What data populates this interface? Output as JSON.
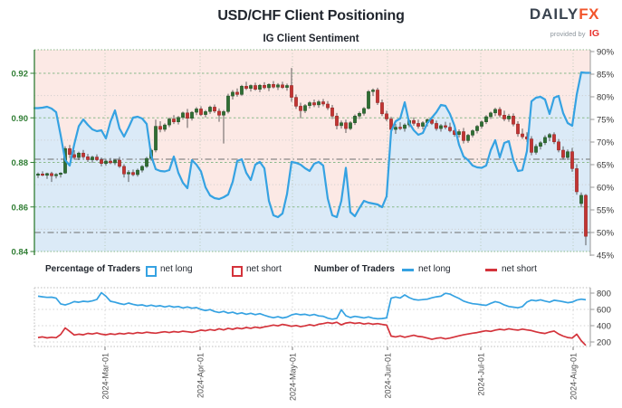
{
  "header": {
    "title": "USD/CHF Client Positioning",
    "subtitle": "IG Client Sentiment",
    "logo": {
      "daily": "DAILY",
      "fx": "FX",
      "provided_by": "provided by",
      "ig": "IG"
    }
  },
  "legend": {
    "percentage_label": "Percentage of Traders",
    "number_label": "Number of Traders",
    "net_long": "net long",
    "net_short": "net short"
  },
  "colors": {
    "candle_up": "#2f6e33",
    "candle_up_stroke": "#1e4f22",
    "candle_down": "#c23432",
    "candle_down_stroke": "#8f2321",
    "sentiment_line": "#35a2e2",
    "net_long_count_line": "#35a2e2",
    "net_short_count_line": "#d4333b",
    "fill_above_line": "#fce9e5",
    "fill_below_line": "#dbeaf7",
    "price_axis": "#2f7d33"
  },
  "chart_data": [
    {
      "type": "candlestick+line",
      "title": "IG Client Sentiment",
      "ylabel_left": "price",
      "ylabel_right": "percent net long",
      "price_ticks": [
        0.92,
        0.9,
        0.88,
        0.86,
        0.84
      ],
      "price_minor_lines": [
        0.91,
        0.89,
        0.87,
        0.85
      ],
      "pct_ticks": [
        90,
        85,
        80,
        75,
        70,
        65,
        60,
        55,
        50,
        45
      ],
      "pct_range": [
        45,
        90
      ],
      "price_range": [
        0.84,
        0.925
      ],
      "reference_lines_pct": [
        66.2,
        50
      ],
      "x_tick_labels": [
        "2024-Mar-01",
        "2024-Apr-01",
        "2024-May-01",
        "2024-Jun-01",
        "2024-Jul-01",
        "2024-Aug-01"
      ],
      "candles_ohlc": [
        [
          0.8742,
          0.8755,
          0.873,
          0.8748
        ],
        [
          0.8748,
          0.876,
          0.8738,
          0.8742
        ],
        [
          0.8742,
          0.8754,
          0.8726,
          0.875
        ],
        [
          0.875,
          0.8758,
          0.8712,
          0.874
        ],
        [
          0.874,
          0.8752,
          0.8728,
          0.8746
        ],
        [
          0.8746,
          0.8756,
          0.8732,
          0.8752
        ],
        [
          0.8752,
          0.8872,
          0.8748,
          0.8862
        ],
        [
          0.8862,
          0.8878,
          0.882,
          0.8835
        ],
        [
          0.8835,
          0.8855,
          0.8815,
          0.8822
        ],
        [
          0.8822,
          0.8848,
          0.881,
          0.8842
        ],
        [
          0.8842,
          0.8856,
          0.8818,
          0.8825
        ],
        [
          0.8825,
          0.8838,
          0.8802,
          0.8812
        ],
        [
          0.8812,
          0.883,
          0.8798,
          0.8824
        ],
        [
          0.8824,
          0.8836,
          0.8806,
          0.8812
        ],
        [
          0.8812,
          0.8822,
          0.8782,
          0.8795
        ],
        [
          0.8795,
          0.8812,
          0.8785,
          0.8806
        ],
        [
          0.8806,
          0.882,
          0.8792,
          0.8798
        ],
        [
          0.8798,
          0.8815,
          0.8788,
          0.881
        ],
        [
          0.881,
          0.8825,
          0.8775,
          0.8782
        ],
        [
          0.8782,
          0.8792,
          0.8732,
          0.8748
        ],
        [
          0.8748,
          0.8765,
          0.8712,
          0.8755
        ],
        [
          0.8755,
          0.8768,
          0.8738,
          0.8745
        ],
        [
          0.8745,
          0.8772,
          0.8736,
          0.8765
        ],
        [
          0.8765,
          0.8788,
          0.8755,
          0.8782
        ],
        [
          0.8782,
          0.8825,
          0.8775,
          0.8818
        ],
        [
          0.8818,
          0.8862,
          0.8808,
          0.8855
        ],
        [
          0.8855,
          0.8992,
          0.8845,
          0.8962
        ],
        [
          0.8962,
          0.8985,
          0.8935,
          0.8948
        ],
        [
          0.8948,
          0.8975,
          0.8938,
          0.8968
        ],
        [
          0.8968,
          0.9002,
          0.8958,
          0.8995
        ],
        [
          0.8995,
          0.9012,
          0.8972,
          0.8982
        ],
        [
          0.8982,
          0.9008,
          0.897,
          0.9002
        ],
        [
          0.9002,
          0.9028,
          0.8992,
          0.9022
        ],
        [
          0.9022,
          0.904,
          0.8955,
          0.8998
        ],
        [
          0.8998,
          0.903,
          0.8988,
          0.9025
        ],
        [
          0.9025,
          0.9048,
          0.9012,
          0.904
        ],
        [
          0.904,
          0.9052,
          0.9008,
          0.9015
        ],
        [
          0.9015,
          0.9035,
          0.9002,
          0.9028
        ],
        [
          0.9028,
          0.9055,
          0.9018,
          0.9048
        ],
        [
          0.9048,
          0.906,
          0.9022,
          0.903
        ],
        [
          0.903,
          0.9042,
          0.8982,
          0.9012
        ],
        [
          0.9012,
          0.9035,
          0.8885,
          0.9028
        ],
        [
          0.9028,
          0.9108,
          0.902,
          0.9098
        ],
        [
          0.9098,
          0.9125,
          0.9082,
          0.9115
        ],
        [
          0.9115,
          0.9132,
          0.9095,
          0.9105
        ],
        [
          0.9105,
          0.9148,
          0.9098,
          0.9142
        ],
        [
          0.9142,
          0.9162,
          0.9125,
          0.9132
        ],
        [
          0.9132,
          0.915,
          0.9118,
          0.9145
        ],
        [
          0.9145,
          0.9158,
          0.9122,
          0.9128
        ],
        [
          0.9128,
          0.9152,
          0.9115,
          0.9146
        ],
        [
          0.9146,
          0.916,
          0.9128,
          0.9135
        ],
        [
          0.9135,
          0.9155,
          0.912,
          0.915
        ],
        [
          0.915,
          0.9165,
          0.9132,
          0.9138
        ],
        [
          0.9138,
          0.9156,
          0.9125,
          0.9148
        ],
        [
          0.9148,
          0.9162,
          0.913,
          0.9136
        ],
        [
          0.9136,
          0.9154,
          0.9122,
          0.9145
        ],
        [
          0.9145,
          0.9224,
          0.9072,
          0.9092
        ],
        [
          0.9092,
          0.9105,
          0.904,
          0.9052
        ],
        [
          0.9052,
          0.9068,
          0.8998,
          0.9032
        ],
        [
          0.9032,
          0.9062,
          0.9022,
          0.9055
        ],
        [
          0.9055,
          0.9075,
          0.9042,
          0.9068
        ],
        [
          0.9068,
          0.9082,
          0.9048,
          0.9058
        ],
        [
          0.9058,
          0.908,
          0.9045,
          0.9072
        ],
        [
          0.9072,
          0.9085,
          0.9052,
          0.9062
        ],
        [
          0.9062,
          0.9075,
          0.9035,
          0.9045
        ],
        [
          0.9045,
          0.9058,
          0.8995,
          0.9008
        ],
        [
          0.9008,
          0.9022,
          0.8948,
          0.8965
        ],
        [
          0.8965,
          0.8988,
          0.8952,
          0.8978
        ],
        [
          0.8978,
          0.8992,
          0.8932,
          0.8952
        ],
        [
          0.8952,
          0.8985,
          0.8945,
          0.8978
        ],
        [
          0.8978,
          0.9015,
          0.8968,
          0.9008
        ],
        [
          0.9008,
          0.9028,
          0.8995,
          0.902
        ],
        [
          0.902,
          0.9048,
          0.901,
          0.9042
        ],
        [
          0.9042,
          0.9125,
          0.9038,
          0.9118
        ],
        [
          0.9118,
          0.9132,
          0.9098,
          0.9125
        ],
        [
          0.9125,
          0.9135,
          0.9058,
          0.9068
        ],
        [
          0.9068,
          0.9082,
          0.9008,
          0.9018
        ],
        [
          0.9018,
          0.9032,
          0.8985,
          0.8995
        ],
        [
          0.8995,
          0.9005,
          0.8938,
          0.8948
        ],
        [
          0.8948,
          0.8972,
          0.8928,
          0.8958
        ],
        [
          0.8958,
          0.898,
          0.8945,
          0.8952
        ],
        [
          0.8952,
          0.8975,
          0.8938,
          0.8968
        ],
        [
          0.8968,
          0.8995,
          0.8958,
          0.8988
        ],
        [
          0.8988,
          0.9002,
          0.8965,
          0.8975
        ],
        [
          0.8975,
          0.8992,
          0.8952,
          0.8962
        ],
        [
          0.8962,
          0.8985,
          0.8948,
          0.8978
        ],
        [
          0.8978,
          0.8998,
          0.8962,
          0.8992
        ],
        [
          0.8992,
          0.9005,
          0.8968,
          0.8975
        ],
        [
          0.8975,
          0.8988,
          0.8942,
          0.8952
        ],
        [
          0.8952,
          0.8972,
          0.8938,
          0.8965
        ],
        [
          0.8965,
          0.8982,
          0.8948,
          0.8958
        ],
        [
          0.8958,
          0.8978,
          0.8935,
          0.8942
        ],
        [
          0.8942,
          0.8962,
          0.8915,
          0.8925
        ],
        [
          0.8925,
          0.8948,
          0.8912,
          0.8938
        ],
        [
          0.8938,
          0.8955,
          0.8885,
          0.8898
        ],
        [
          0.8898,
          0.8928,
          0.8888,
          0.8922
        ],
        [
          0.8922,
          0.8948,
          0.8912,
          0.8942
        ],
        [
          0.8942,
          0.8968,
          0.893,
          0.8962
        ],
        [
          0.8962,
          0.8988,
          0.8952,
          0.8982
        ],
        [
          0.8982,
          0.9012,
          0.8972,
          0.9005
        ],
        [
          0.9005,
          0.9028,
          0.8995,
          0.9022
        ],
        [
          0.9022,
          0.9045,
          0.9008,
          0.9038
        ],
        [
          0.9038,
          0.9048,
          0.9002,
          0.9012
        ],
        [
          0.9012,
          0.9032,
          0.8985,
          0.8995
        ],
        [
          0.8995,
          0.9018,
          0.8982,
          0.9008
        ],
        [
          0.9008,
          0.902,
          0.8962,
          0.8972
        ],
        [
          0.8972,
          0.8985,
          0.8915,
          0.8928
        ],
        [
          0.8928,
          0.8952,
          0.8905,
          0.8915
        ],
        [
          0.8915,
          0.8935,
          0.8892,
          0.8905
        ],
        [
          0.8905,
          0.8918,
          0.8832,
          0.8845
        ],
        [
          0.8845,
          0.8882,
          0.8835,
          0.8872
        ],
        [
          0.8872,
          0.8895,
          0.8858,
          0.8888
        ],
        [
          0.8888,
          0.8922,
          0.8878,
          0.8912
        ],
        [
          0.8912,
          0.8932,
          0.8895,
          0.8925
        ],
        [
          0.8925,
          0.8935,
          0.8882,
          0.8892
        ],
        [
          0.8892,
          0.8905,
          0.8845,
          0.8855
        ],
        [
          0.8855,
          0.8872,
          0.8812,
          0.8822
        ],
        [
          0.8822,
          0.8858,
          0.881,
          0.8848
        ],
        [
          0.8848,
          0.8865,
          0.8758,
          0.8772
        ],
        [
          0.8772,
          0.8792,
          0.8655,
          0.8668
        ],
        [
          0.8615,
          0.8665,
          0.8598,
          0.8652
        ],
        [
          0.8652,
          0.8658,
          0.8428,
          0.8468
        ]
      ],
      "net_long_pct": [
        77.5,
        77.6,
        77.8,
        77.4,
        76.6,
        71.5,
        66.0,
        64.8,
        69.5,
        73.5,
        75.0,
        73.8,
        72.8,
        72.4,
        72.6,
        70.8,
        74.5,
        77.0,
        73.0,
        71.2,
        73.2,
        75.4,
        75.6,
        75.2,
        74.0,
        67.0,
        64.0,
        63.6,
        63.5,
        63.8,
        66.8,
        63.2,
        61.0,
        59.8,
        66.0,
        65.0,
        63.5,
        60.0,
        58.2,
        57.6,
        57.4,
        57.8,
        58.4,
        61.2,
        65.8,
        66.2,
        63.2,
        61.6,
        65.0,
        65.6,
        64.2,
        57.0,
        53.8,
        53.4,
        54.2,
        58.5,
        65.6,
        65.4,
        65.0,
        64.2,
        63.6,
        65.2,
        65.6,
        64.8,
        57.5,
        53.8,
        53.4,
        57.0,
        64.3,
        54.5,
        53.6,
        55.4,
        57.0,
        56.6,
        56.4,
        56.2,
        55.6,
        58.0,
        72.4,
        74.6,
        75.2,
        78.8,
        74.2,
        72.6,
        71.6,
        72.0,
        74.2,
        75.4,
        76.6,
        78.2,
        78.0,
        76.2,
        73.6,
        69.4,
        66.8,
        66.0,
        64.8,
        64.4,
        64.3,
        64.8,
        68.2,
        70.4,
        66.6,
        69.8,
        70.2,
        66.0,
        63.6,
        63.8,
        68.0,
        79.0,
        79.8,
        80.0,
        79.4,
        76.2,
        79.8,
        80.2,
        76.4,
        74.2,
        73.6,
        80.5,
        85.4,
        85.3
      ]
    },
    {
      "type": "line",
      "title": "Number of Traders",
      "y_ticks": [
        800,
        600,
        400,
        200
      ],
      "series": [
        {
          "name": "net long",
          "color": "#35a2e2",
          "values": [
            762,
            755,
            748,
            750,
            738,
            668,
            655,
            672,
            695,
            688,
            700,
            694,
            705,
            722,
            806,
            762,
            700,
            688,
            672,
            660,
            678,
            662,
            650,
            656,
            640,
            652,
            638,
            645,
            630,
            642,
            628,
            636,
            618,
            630,
            614,
            622,
            600,
            586,
            598,
            574,
            562,
            576,
            554,
            566,
            546,
            558,
            540,
            552,
            536,
            548,
            528,
            510,
            498,
            510,
            494,
            506,
            532,
            545,
            534,
            540,
            526,
            538,
            520,
            516,
            492,
            480,
            490,
            595,
            522,
            500,
            514,
            506,
            496,
            508,
            492,
            484,
            488,
            496,
            738,
            752,
            740,
            778,
            744,
            722,
            714,
            720,
            726,
            742,
            754,
            762,
            798,
            788,
            760,
            735,
            702,
            684,
            670,
            664,
            656,
            650,
            674,
            696,
            682,
            654,
            636,
            628,
            620,
            634,
            690,
            714,
            706,
            718,
            702,
            690,
            712,
            704,
            694,
            682,
            690,
            714,
            726,
            718
          ]
        },
        {
          "name": "net short",
          "color": "#d4333b",
          "values": [
            255,
            262,
            250,
            258,
            252,
            292,
            372,
            330,
            286,
            296,
            288,
            306,
            298,
            310,
            295,
            288,
            300,
            292,
            306,
            298,
            310,
            302,
            316,
            308,
            320,
            312,
            308,
            318,
            326,
            316,
            328,
            320,
            332,
            326,
            318,
            330,
            346,
            338,
            352,
            342,
            362,
            348,
            368,
            356,
            372,
            362,
            378,
            368,
            382,
            372,
            386,
            396,
            408,
            398,
            416,
            406,
            392,
            402,
            388,
            398,
            412,
            400,
            418,
            426,
            438,
            428,
            442,
            410,
            432,
            440,
            428,
            436,
            420,
            430,
            418,
            426,
            416,
            408,
            272,
            262,
            275,
            258,
            270,
            282,
            268,
            262,
            248,
            232,
            246,
            252,
            238,
            248,
            262,
            276,
            288,
            298,
            308,
            316,
            328,
            338,
            330,
            345,
            356,
            348,
            362,
            352,
            345,
            358,
            348,
            340,
            325,
            312,
            305,
            322,
            335,
            298,
            272,
            255,
            248,
            295,
            215,
            158
          ]
        }
      ]
    }
  ]
}
